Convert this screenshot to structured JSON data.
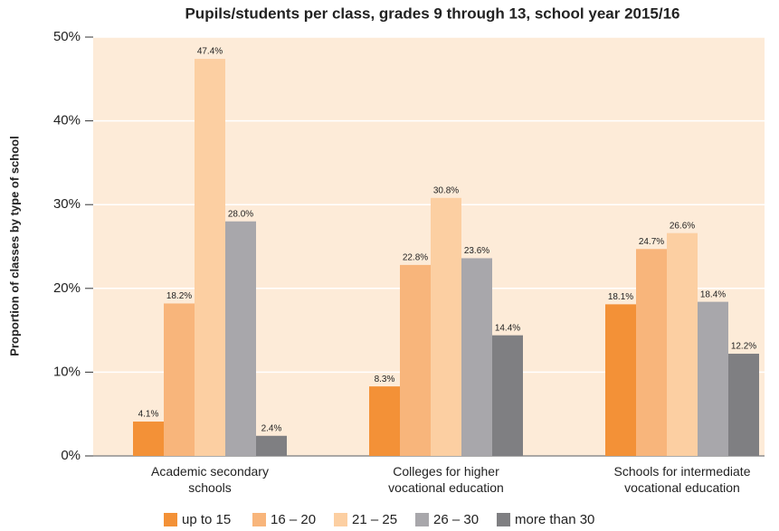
{
  "chart_data": {
    "type": "bar",
    "title": "Pupils/students per class, grades 9 through 13, school year 2015/16",
    "y_axis_label": "Proportion of classes by type of school",
    "categories": [
      "Academic secondary\nschools",
      "Colleges for higher\nvocational education",
      "Schools for intermediate\nvocational education"
    ],
    "series": [
      {
        "name": "up to 15",
        "color": "#f39137",
        "values": [
          4.1,
          8.3,
          18.1
        ],
        "value_labels": [
          "4.1%",
          "8.3%",
          "18.1%"
        ]
      },
      {
        "name": "16 – 20",
        "color": "#f8b57b",
        "values": [
          18.2,
          22.8,
          24.7
        ],
        "value_labels": [
          "18.2%",
          "22.8%",
          "24.7%"
        ]
      },
      {
        "name": "21 – 25",
        "color": "#fccfa2",
        "values": [
          47.4,
          30.8,
          26.6
        ],
        "value_labels": [
          "47.4%",
          "30.8%",
          "26.6%"
        ]
      },
      {
        "name": "26 – 30",
        "color": "#a8a7ab",
        "values": [
          28.0,
          23.6,
          18.4
        ],
        "value_labels": [
          "28.0%",
          "23.6%",
          "18.4%"
        ]
      },
      {
        "name": "more than 30",
        "color": "#7f7f82",
        "values": [
          2.4,
          14.4,
          12.2
        ],
        "value_labels": [
          "2.4%",
          "14.4%",
          "12.2%"
        ]
      }
    ],
    "ylim": [
      0,
      50
    ],
    "yticks": [
      {
        "value": 0,
        "label": "0%"
      },
      {
        "value": 10,
        "label": "10%"
      },
      {
        "value": 20,
        "label": "20%"
      },
      {
        "value": 30,
        "label": "30%"
      },
      {
        "value": 40,
        "label": "40%"
      },
      {
        "value": 50,
        "label": "50%"
      }
    ],
    "grid": true,
    "background": "#fdebd8",
    "legend": "bottom"
  }
}
